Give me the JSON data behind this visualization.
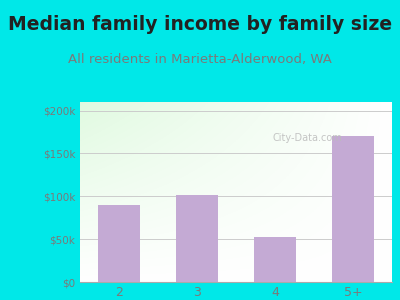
{
  "title": "Median family income by family size",
  "subtitle": "All residents in Marietta-Alderwood, WA",
  "categories": [
    "2",
    "3",
    "4",
    "5+"
  ],
  "values": [
    90000,
    101000,
    52000,
    170000
  ],
  "bar_color": "#c4aad4",
  "ylim": [
    0,
    210000
  ],
  "yticks": [
    0,
    50000,
    100000,
    150000,
    200000
  ],
  "ytick_labels": [
    "$0",
    "$50k",
    "$100k",
    "$150k",
    "$200k"
  ],
  "title_fontsize": 13.5,
  "subtitle_fontsize": 9.5,
  "title_color": "#222222",
  "subtitle_color": "#7a7a7a",
  "tick_color": "#7a7a7a",
  "background_outer": "#00e8e8",
  "watermark": "City-Data.com",
  "grid_color": "#cccccc"
}
